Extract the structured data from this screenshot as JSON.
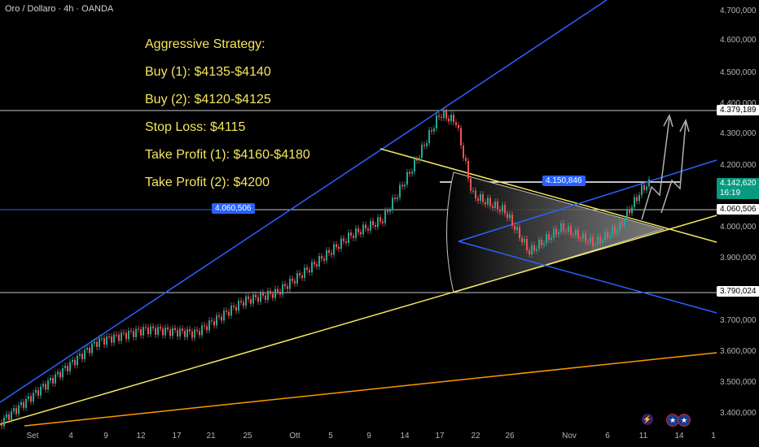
{
  "header": {
    "symbol_title": "Oro / Dollaro · 4h · OANDA"
  },
  "strategy": {
    "heading": "Aggressive Strategy:",
    "lines": [
      "Buy (1): $4135-$4140",
      "Buy (2): $4120-$4125",
      "Stop Loss: $4115",
      "Take Profit (1): $4160-$4180",
      "Take Profit (2): $4200"
    ]
  },
  "price_axis": {
    "ticks": [
      "4.700,000",
      "4.600,000",
      "4.500,000",
      "4.400,000",
      "4.300,000",
      "4.200,000",
      "4.000,000",
      "3.900,000",
      "3.700,000",
      "3.600,000",
      "3.500,000",
      "3.400,000"
    ]
  },
  "price_tags": {
    "level_high": "4.379,189",
    "current_price": "4.142,620",
    "countdown": "16:19",
    "level_mid": "4.060,506",
    "level_low": "3.790,024",
    "line_label_left": "4.060,506",
    "line_label_top": "4.150,846"
  },
  "time_axis": {
    "ticks": [
      "Set",
      "4",
      "9",
      "12",
      "17",
      "21",
      "25",
      "Ott",
      "5",
      "9",
      "14",
      "17",
      "22",
      "26",
      "Nov",
      "6",
      "11",
      "14",
      "1"
    ]
  },
  "colors": {
    "background": "#000000",
    "up": "#26a69a",
    "down": "#ef5350",
    "blue_line": "#2962ff",
    "yellow_line": "#f5e65c",
    "orange_line": "#ff9800",
    "text_yellow": "#f5e65c",
    "current_price_tag": "#089981"
  },
  "icons": {
    "lightning": "lightning-icon",
    "flag": "us-flag-icon"
  }
}
